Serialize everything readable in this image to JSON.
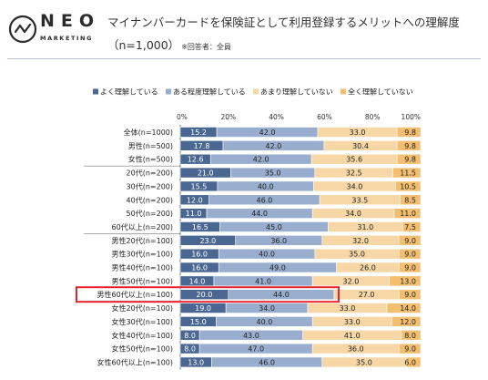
{
  "brand": {
    "name": "NEO",
    "sub": "MARKETING"
  },
  "header": {
    "title": "マイナンバーカードを保険証として利用登録するメリットへの理解度",
    "subtitle": "（n=1,000）",
    "note": "※回答者：全員"
  },
  "colors": {
    "s1": "#4a6792",
    "s2": "#99aece",
    "s3": "#f6d7a5",
    "s4": "#f3be6f",
    "highlight": "#e8232b"
  },
  "chart_data": {
    "type": "bar",
    "orientation": "horizontal",
    "stacked": true,
    "percent": true,
    "xlim": [
      0,
      100
    ],
    "xticks": [
      "0%",
      "20%",
      "40%",
      "60%",
      "80%",
      "100%"
    ],
    "legend_position": "top",
    "categories": [
      "全体(n=1000)",
      "男性(n=500)",
      "女性(n=500)",
      "20代(n=200)",
      "30代(n=200)",
      "40代(n=200)",
      "50代(n=200)",
      "60代以上(n=200)",
      "男性20代(n=100)",
      "男性30代(n=100)",
      "男性40代(n=100)",
      "男性50代(n=100)",
      "男性60代以上(n=100)",
      "女性20代(n=100)",
      "女性30代(n=100)",
      "女性40代(n=100)",
      "女性50代(n=100)",
      "女性60代以上(n=100)"
    ],
    "series": [
      {
        "name": "よく理解している",
        "values": [
          "15.2",
          "17.8",
          "12.6",
          "21.0",
          "15.5",
          "12.0",
          "11.0",
          "16.5",
          "23.0",
          "16.0",
          "16.0",
          "14.0",
          "20.0",
          "19.0",
          "15.0",
          "8.0",
          "8.0",
          "13.0"
        ]
      },
      {
        "name": "ある程度理解している",
        "values": [
          "42.0",
          "42.0",
          "42.0",
          "35.0",
          "40.0",
          "46.0",
          "44.0",
          "45.0",
          "36.0",
          "40.0",
          "49.0",
          "41.0",
          "44.0",
          "34.0",
          "40.0",
          "43.0",
          "47.0",
          "46.0"
        ]
      },
      {
        "name": "あまり理解していない",
        "values": [
          "33.0",
          "30.4",
          "35.6",
          "32.5",
          "34.0",
          "33.5",
          "34.0",
          "31.0",
          "32.0",
          "35.0",
          "26.0",
          "32.0",
          "27.0",
          "33.0",
          "33.0",
          "41.0",
          "36.0",
          "35.0"
        ]
      },
      {
        "name": "全く理解していない",
        "values": [
          "9.8",
          "9.8",
          "9.8",
          "11.5",
          "10.5",
          "8.5",
          "11.0",
          "7.5",
          "9.0",
          "9.0",
          "9.0",
          "13.0",
          "9.0",
          "14.0",
          "12.0",
          "8.0",
          "9.0",
          "6.0"
        ]
      }
    ],
    "highlight_category": "男性60代以上(n=100)"
  }
}
